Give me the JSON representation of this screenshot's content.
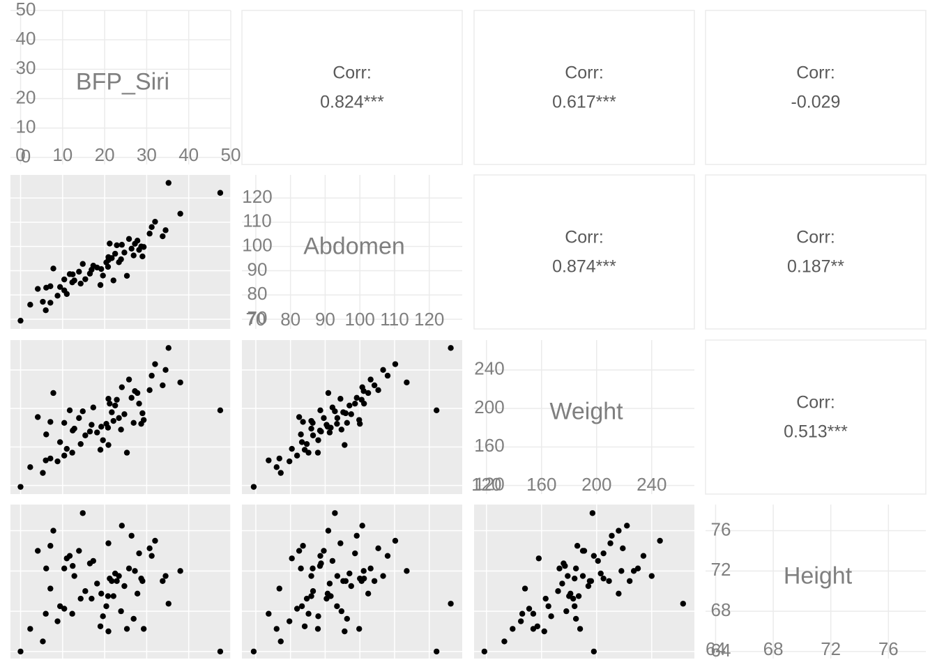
{
  "chart_data": {
    "type": "scatter_matrix",
    "variables": [
      {
        "name": "BFP_Siri",
        "lim": [
          -2.4,
          50
        ],
        "ticks": [
          0,
          10,
          20,
          30,
          40,
          50
        ],
        "values": [
          12.3,
          6.1,
          25.3,
          10.4,
          28.7,
          20.9,
          19.2,
          12.4,
          4.1,
          11.7,
          7.1,
          7.8,
          20.8,
          21.2,
          22.1,
          20.9,
          29.0,
          22.9,
          6.0,
          27.2,
          2.3,
          23.4,
          35.2,
          47.5,
          38.0,
          33.8,
          31.2,
          30.7,
          26.4,
          16.5,
          11.0,
          14.3,
          24.7,
          17.3,
          9.4,
          8.8,
          27.8,
          32.0,
          20.4,
          15.4,
          5.3,
          0.0,
          22.5,
          19.6,
          29.3,
          13.9,
          23.9,
          18.2,
          12.8,
          25.8,
          21.7,
          10.4,
          16.9,
          28.2,
          7.1,
          34.5,
          19.0,
          24.1,
          14.8,
          26.9
        ]
      },
      {
        "name": "Abdomen",
        "lim": [
          66,
          129.5
        ],
        "ticks": [
          70,
          80,
          90,
          100,
          110,
          120
        ],
        "values": [
          85.2,
          83.0,
          87.9,
          86.4,
          100.0,
          94.4,
          90.7,
          88.5,
          82.5,
          88.6,
          83.6,
          90.9,
          91.6,
          101.2,
          86.0,
          95.6,
          95.9,
          100.5,
          73.7,
          101.1,
          76.0,
          93.5,
          126.2,
          122.1,
          113.5,
          104.2,
          108.0,
          105.3,
          99.1,
          88.8,
          80.4,
          84.7,
          97.5,
          92.1,
          83.3,
          79.7,
          102.4,
          110.2,
          93.4,
          86.5,
          77.2,
          69.4,
          97.0,
          88.0,
          99.8,
          89.6,
          94.7,
          91.3,
          86.0,
          103.1,
          95.2,
          81.9,
          90.4,
          98.6,
          76.8,
          106.7,
          84.1,
          100.7,
          92.8,
          96.3
        ]
      },
      {
        "name": "Weight",
        "lim": [
          111,
          271
        ],
        "ticks": [
          120,
          160,
          200,
          240
        ],
        "values": [
          154,
          173,
          154,
          185,
          184,
          210,
          181,
          177,
          191,
          198,
          186,
          216,
          180,
          205,
          187,
          162,
          195,
          209,
          146,
          218,
          139,
          190,
          262.8,
          198,
          227,
          224,
          234,
          219,
          211,
          176,
          158,
          163,
          194,
          201,
          165,
          145,
          216,
          246,
          184,
          172,
          133,
          118.5,
          203,
          167,
          188,
          190,
          178,
          175,
          179,
          230,
          196,
          151,
          183,
          205,
          148,
          240,
          157,
          222,
          197,
          185
        ]
      },
      {
        "name": "Height",
        "lim": [
          63.3,
          78.6
        ],
        "ticks": [
          64,
          68,
          72,
          76
        ],
        "values": [
          67.75,
          72.25,
          66.25,
          72.25,
          71.25,
          74.75,
          69.75,
          72.5,
          74,
          73.5,
          74.5,
          76,
          69.5,
          71.25,
          69.5,
          66,
          71,
          71,
          67.75,
          72,
          66.25,
          71.5,
          68.75,
          64,
          72,
          71,
          73.5,
          74.25,
          75.5,
          72.75,
          73.25,
          69.25,
          70.5,
          73,
          68.5,
          67,
          69.75,
          75,
          68.5,
          70,
          65,
          64,
          71.75,
          67.5,
          66.25,
          74,
          68,
          70.75,
          71.5,
          72.25,
          71,
          68.25,
          69.25,
          73.75,
          70.25,
          71.5,
          66.5,
          76.5,
          77.75,
          67.25
        ]
      }
    ],
    "correlations": [
      {
        "label": "Corr:",
        "value": "0.824***"
      },
      {
        "label": "Corr:",
        "value": "0.617***"
      },
      {
        "label": "Corr:",
        "value": "-0.029"
      },
      {
        "label": "Corr:",
        "value": "0.874***"
      },
      {
        "label": "Corr:",
        "value": "0.187**"
      },
      {
        "label": "Corr:",
        "value": "0.513***"
      }
    ],
    "point_color": "#000000"
  }
}
